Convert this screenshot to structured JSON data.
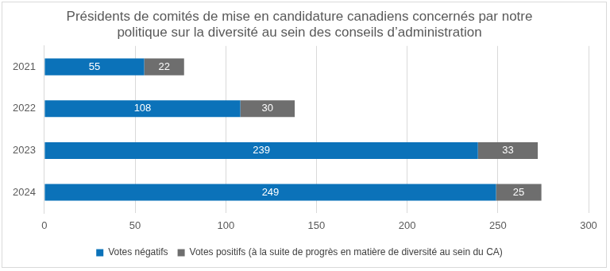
{
  "chart_data": {
    "type": "bar",
    "title": "Présidents de comités de mise en candidature canadiens concernés par notre politique sur la diversité au sein des conseils d’administration",
    "orientation": "horizontal",
    "stacked": true,
    "data_labels": true,
    "grid": true,
    "legend": "bottom",
    "categories": [
      "2021",
      "2022",
      "2023",
      "2024"
    ],
    "series": [
      {
        "name": "Votes négatifs",
        "color": "#0b72b9",
        "values": [
          55,
          108,
          239,
          249
        ]
      },
      {
        "name": "Votes positifs (à la suite de progrès en matière de diversité au sein du CA)",
        "color": "#6e6e6e",
        "values": [
          22,
          30,
          33,
          25
        ]
      }
    ],
    "xlim": [
      0,
      300
    ],
    "xticks": [
      0,
      50,
      100,
      150,
      200,
      250,
      300
    ]
  }
}
